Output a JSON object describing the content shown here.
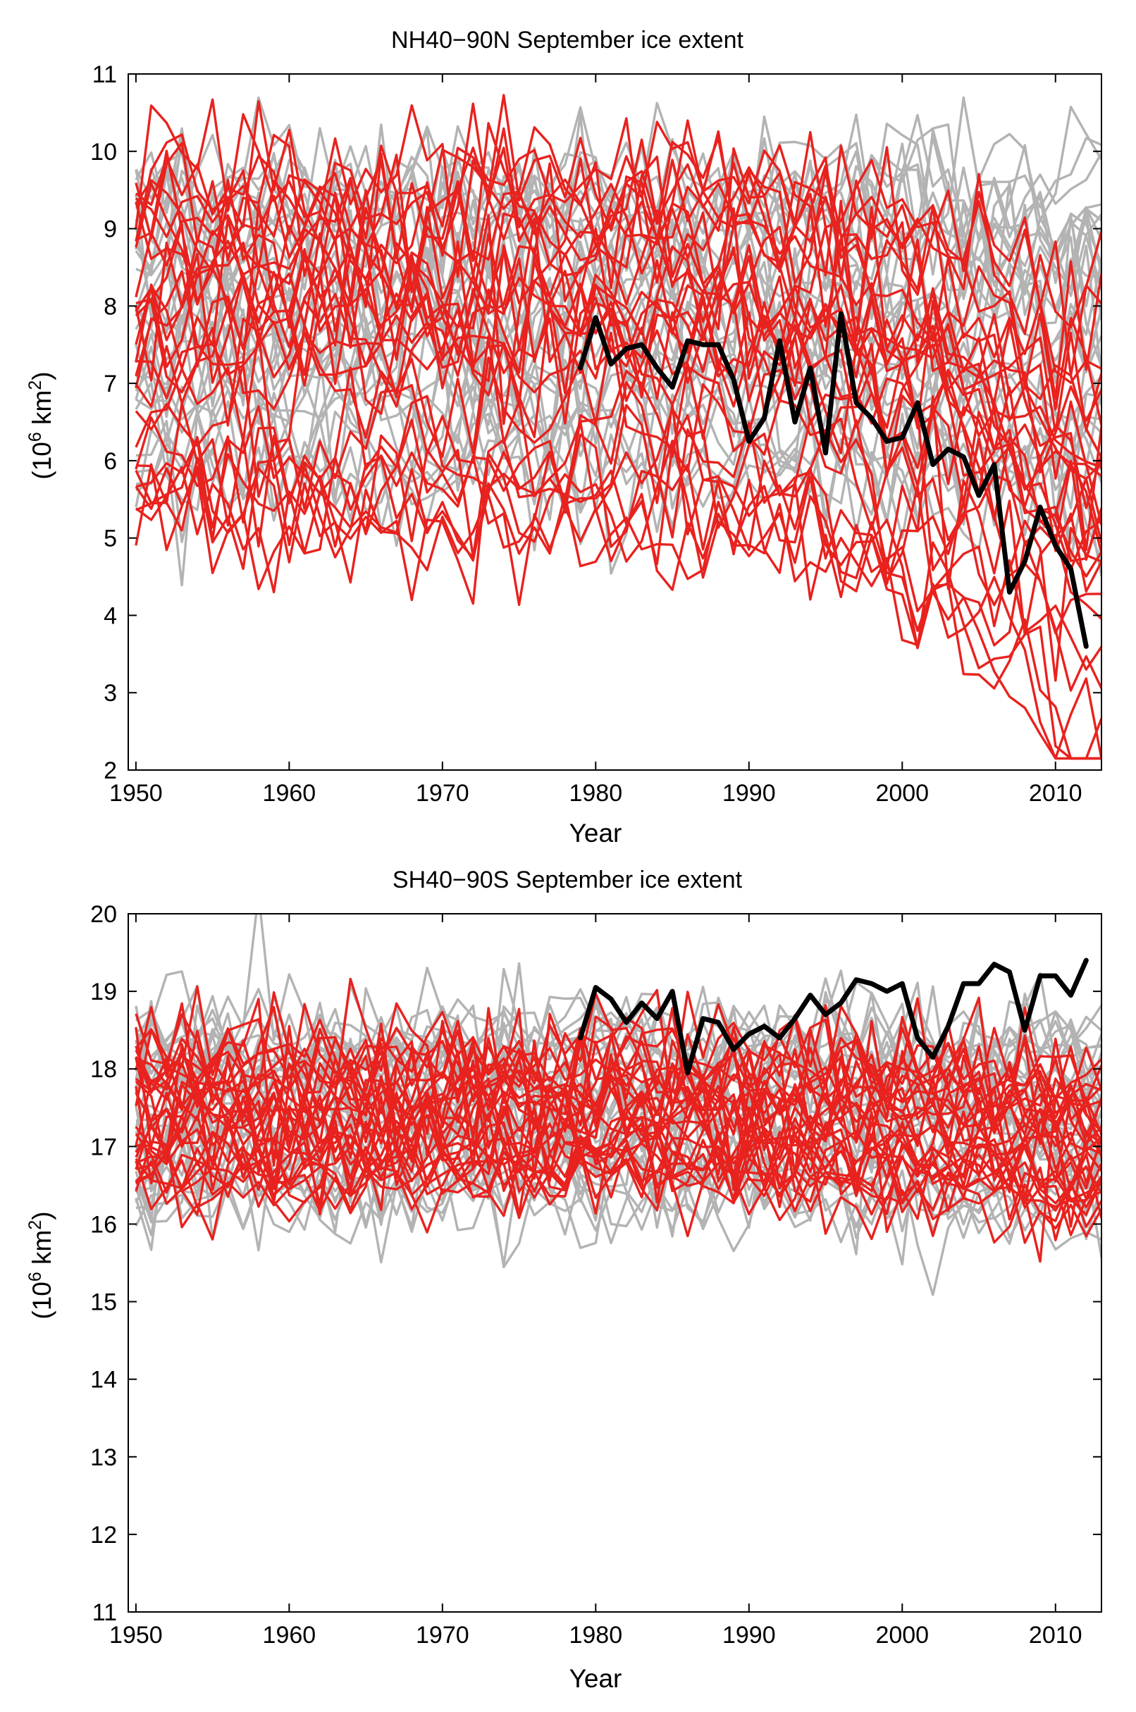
{
  "chart_data": [
    {
      "type": "line",
      "title": "NH40−90N September ice extent",
      "xlabel": "Year",
      "ylabel_base": "(10",
      "ylabel_exp": "6",
      "ylabel_unit": " km",
      "ylabel_unit_exp": "2",
      "ylabel_close": ")",
      "xlim": [
        1949.5,
        2013
      ],
      "ylim": [
        2,
        11
      ],
      "xticks": [
        1950,
        1960,
        1970,
        1980,
        1990,
        2000,
        2010
      ],
      "yticks": [
        2,
        3,
        4,
        5,
        6,
        7,
        8,
        9,
        10,
        11
      ],
      "grid": false,
      "colors": {
        "observed": "#000000",
        "selected_models": "#e8221e",
        "other_models": "#b3b3b3"
      },
      "observed": {
        "x": [
          1979,
          1980,
          1981,
          1982,
          1983,
          1984,
          1985,
          1986,
          1987,
          1988,
          1989,
          1990,
          1991,
          1992,
          1993,
          1994,
          1995,
          1996,
          1997,
          1998,
          1999,
          2000,
          2001,
          2002,
          2003,
          2004,
          2005,
          2006,
          2007,
          2008,
          2009,
          2010,
          2011,
          2012
        ],
        "y": [
          7.2,
          7.85,
          7.25,
          7.45,
          7.5,
          7.2,
          6.95,
          7.55,
          7.5,
          7.5,
          7.05,
          6.25,
          6.55,
          7.55,
          6.5,
          7.2,
          6.1,
          7.9,
          6.75,
          6.55,
          6.25,
          6.3,
          6.75,
          5.95,
          6.15,
          6.05,
          5.55,
          5.95,
          4.3,
          4.7,
          5.4,
          4.9,
          4.6,
          3.6
        ]
      },
      "ensemble": {
        "x_start": 1950,
        "x_end": 2013,
        "red_members": 30,
        "gray_members": 30,
        "seed": 11
      }
    },
    {
      "type": "line",
      "title": "SH40−90S September ice extent",
      "xlabel": "Year",
      "ylabel_base": "(10",
      "ylabel_exp": "6",
      "ylabel_unit": " km",
      "ylabel_unit_exp": "2",
      "ylabel_close": ")",
      "xlim": [
        1949.5,
        2013
      ],
      "ylim": [
        11,
        20
      ],
      "xticks": [
        1950,
        1960,
        1970,
        1980,
        1990,
        2000,
        2010
      ],
      "yticks": [
        11,
        12,
        13,
        14,
        15,
        16,
        17,
        18,
        19,
        20
      ],
      "grid": false,
      "colors": {
        "observed": "#000000",
        "selected_models": "#e8221e",
        "other_models": "#b3b3b3"
      },
      "observed": {
        "x": [
          1979,
          1980,
          1981,
          1982,
          1983,
          1984,
          1985,
          1986,
          1987,
          1988,
          1989,
          1990,
          1991,
          1992,
          1993,
          1994,
          1995,
          1996,
          1997,
          1998,
          1999,
          2000,
          2001,
          2002,
          2003,
          2004,
          2005,
          2006,
          2007,
          2008,
          2009,
          2010,
          2011,
          2012
        ],
        "y": [
          18.4,
          19.05,
          18.9,
          18.6,
          18.85,
          18.65,
          19.0,
          17.95,
          18.65,
          18.6,
          18.25,
          18.45,
          18.55,
          18.4,
          18.65,
          18.95,
          18.7,
          18.85,
          19.15,
          19.1,
          19.0,
          19.1,
          18.4,
          18.15,
          18.55,
          19.1,
          19.1,
          19.35,
          19.25,
          18.5,
          19.2,
          19.2,
          18.95,
          19.4
        ]
      },
      "ensemble": {
        "x_start": 1950,
        "x_end": 2013,
        "red_members": 30,
        "gray_members": 30,
        "seed": 29
      }
    }
  ]
}
